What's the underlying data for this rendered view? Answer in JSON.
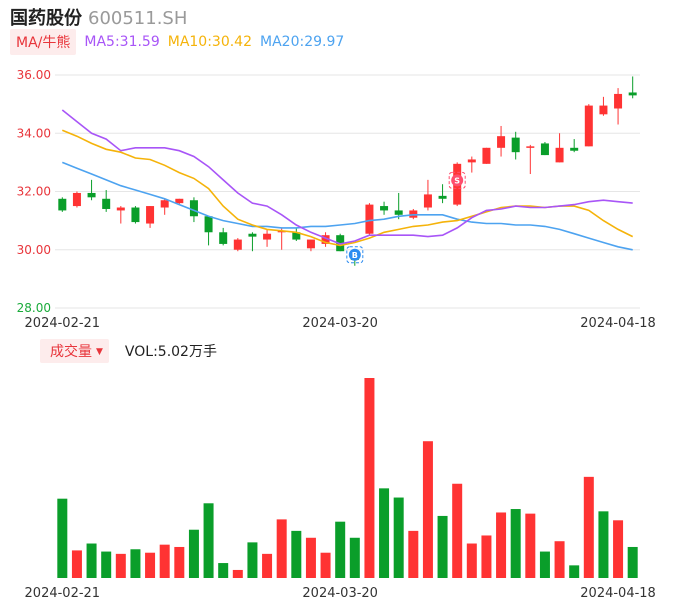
{
  "header": {
    "name": "国药股份",
    "code": "600511.SH"
  },
  "ma_legend": {
    "tag": "MA/牛熊",
    "ma5": "MA5:31.59",
    "ma10": "MA10:30.42",
    "ma20": "MA20:29.97"
  },
  "volume_legend": {
    "tag": "成交量",
    "value": "VOL:5.02万手"
  },
  "colors": {
    "up": "#ff3333",
    "down": "#0a9e2a",
    "ma5": "#a855f7",
    "ma10": "#f5b30a",
    "ma20": "#4da3f0",
    "grid": "#e6e6e6"
  },
  "chart_data": [
    {
      "type": "candlestick",
      "y_ticks": [
        "36.00",
        "34.00",
        "32.00",
        "30.00",
        "28.00"
      ],
      "ylim": [
        28,
        36
      ],
      "x_ticks": [
        {
          "label": "2024-02-21",
          "index": 0
        },
        {
          "label": "2024-03-20",
          "index": 19
        },
        {
          "label": "2024-04-18",
          "index": 38
        }
      ],
      "markers": [
        {
          "label": "B",
          "index": 20,
          "at": "low"
        },
        {
          "label": "S",
          "index": 27,
          "at": "high"
        }
      ],
      "candles": [
        {
          "o": 31.75,
          "c": 31.35,
          "h": 31.8,
          "l": 31.3
        },
        {
          "o": 31.5,
          "c": 31.95,
          "h": 32.0,
          "l": 31.45
        },
        {
          "o": 31.95,
          "c": 31.8,
          "h": 32.4,
          "l": 31.7
        },
        {
          "o": 31.75,
          "c": 31.4,
          "h": 32.05,
          "l": 31.3
        },
        {
          "o": 31.35,
          "c": 31.45,
          "h": 31.5,
          "l": 30.9
        },
        {
          "o": 31.45,
          "c": 30.95,
          "h": 31.5,
          "l": 30.9
        },
        {
          "o": 30.9,
          "c": 31.5,
          "h": 31.5,
          "l": 30.75
        },
        {
          "o": 31.45,
          "c": 31.7,
          "h": 31.75,
          "l": 31.2
        },
        {
          "o": 31.6,
          "c": 31.75,
          "h": 31.75,
          "l": 31.55
        },
        {
          "o": 31.7,
          "c": 31.15,
          "h": 31.8,
          "l": 30.95
        },
        {
          "o": 31.15,
          "c": 30.6,
          "h": 31.15,
          "l": 30.15
        },
        {
          "o": 30.6,
          "c": 30.2,
          "h": 30.75,
          "l": 30.15
        },
        {
          "o": 30.0,
          "c": 30.35,
          "h": 30.4,
          "l": 29.95
        },
        {
          "o": 30.55,
          "c": 30.45,
          "h": 30.6,
          "l": 29.95
        },
        {
          "o": 30.35,
          "c": 30.55,
          "h": 30.7,
          "l": 30.1
        },
        {
          "o": 30.6,
          "c": 30.65,
          "h": 30.75,
          "l": 30.0
        },
        {
          "o": 30.6,
          "c": 30.35,
          "h": 30.75,
          "l": 30.3
        },
        {
          "o": 30.05,
          "c": 30.35,
          "h": 30.35,
          "l": 29.95
        },
        {
          "o": 30.2,
          "c": 30.5,
          "h": 30.6,
          "l": 30.1
        },
        {
          "o": 30.5,
          "c": 29.95,
          "h": 30.55,
          "l": 29.95
        },
        {
          "o": 29.85,
          "c": 29.65,
          "h": 29.95,
          "l": 29.45
        },
        {
          "o": 30.55,
          "c": 31.55,
          "h": 31.6,
          "l": 30.5
        },
        {
          "o": 31.5,
          "c": 31.35,
          "h": 31.65,
          "l": 31.2
        },
        {
          "o": 31.35,
          "c": 31.2,
          "h": 31.95,
          "l": 31.05
        },
        {
          "o": 31.1,
          "c": 31.35,
          "h": 31.4,
          "l": 31.05
        },
        {
          "o": 31.45,
          "c": 31.9,
          "h": 32.4,
          "l": 31.35
        },
        {
          "o": 31.85,
          "c": 31.75,
          "h": 32.25,
          "l": 31.6
        },
        {
          "o": 31.55,
          "c": 32.95,
          "h": 33.0,
          "l": 31.5
        },
        {
          "o": 33.0,
          "c": 33.1,
          "h": 33.2,
          "l": 32.65
        },
        {
          "o": 32.95,
          "c": 33.5,
          "h": 33.5,
          "l": 32.95
        },
        {
          "o": 33.5,
          "c": 33.9,
          "h": 34.25,
          "l": 33.2
        },
        {
          "o": 33.85,
          "c": 33.35,
          "h": 34.05,
          "l": 33.1
        },
        {
          "o": 33.5,
          "c": 33.55,
          "h": 33.6,
          "l": 32.6
        },
        {
          "o": 33.65,
          "c": 33.25,
          "h": 33.7,
          "l": 33.25
        },
        {
          "o": 33.0,
          "c": 33.5,
          "h": 34.0,
          "l": 33.0
        },
        {
          "o": 33.5,
          "c": 33.4,
          "h": 33.8,
          "l": 33.35
        },
        {
          "o": 33.55,
          "c": 34.95,
          "h": 35.0,
          "l": 33.55
        },
        {
          "o": 34.65,
          "c": 34.95,
          "h": 35.25,
          "l": 34.6
        },
        {
          "o": 34.85,
          "c": 35.35,
          "h": 35.55,
          "l": 34.3
        },
        {
          "o": 35.4,
          "c": 35.3,
          "h": 35.95,
          "l": 35.2
        }
      ],
      "ma5": [
        34.8,
        34.4,
        34.0,
        33.8,
        33.4,
        33.5,
        33.5,
        33.5,
        33.4,
        33.2,
        32.85,
        32.4,
        31.95,
        31.6,
        31.5,
        31.2,
        30.85,
        30.6,
        30.4,
        30.2,
        30.3,
        30.5,
        30.5,
        30.5,
        30.5,
        30.45,
        30.5,
        30.75,
        31.1,
        31.35,
        31.4,
        31.5,
        31.45,
        31.45,
        31.5,
        31.55,
        31.65,
        31.7,
        31.65,
        31.6
      ],
      "ma10": [
        34.1,
        33.9,
        33.65,
        33.45,
        33.35,
        33.15,
        33.1,
        32.9,
        32.65,
        32.45,
        32.1,
        31.5,
        31.05,
        30.85,
        30.7,
        30.65,
        30.6,
        30.45,
        30.25,
        30.15,
        30.25,
        30.4,
        30.6,
        30.7,
        30.8,
        30.85,
        30.95,
        31.0,
        31.15,
        31.3,
        31.45,
        31.5,
        31.5,
        31.45,
        31.5,
        31.5,
        31.35,
        31.0,
        30.7,
        30.45
      ],
      "ma20": [
        33.0,
        32.8,
        32.6,
        32.4,
        32.2,
        32.05,
        31.9,
        31.75,
        31.55,
        31.35,
        31.15,
        31.0,
        30.9,
        30.8,
        30.8,
        30.75,
        30.75,
        30.8,
        30.8,
        30.85,
        30.9,
        31.0,
        31.05,
        31.15,
        31.2,
        31.2,
        31.2,
        31.05,
        30.95,
        30.9,
        30.9,
        30.85,
        30.85,
        30.8,
        30.7,
        30.55,
        30.4,
        30.25,
        30.1,
        30.0
      ]
    },
    {
      "type": "bar",
      "series_name": "成交量",
      "unit": "万手",
      "values": [
        6.9,
        2.4,
        3.0,
        2.3,
        2.1,
        2.5,
        2.2,
        2.9,
        2.7,
        4.2,
        6.5,
        1.3,
        0.7,
        3.1,
        2.1,
        5.1,
        4.1,
        3.5,
        2.2,
        4.9,
        3.5,
        17.4,
        7.8,
        7.0,
        4.1,
        11.9,
        5.4,
        8.2,
        3.0,
        3.7,
        5.7,
        6.0,
        5.6,
        2.3,
        3.2,
        1.1,
        8.8,
        5.8,
        5.02,
        2.7
      ],
      "directions": [
        "down",
        "up",
        "down",
        "down",
        "up",
        "down",
        "up",
        "up",
        "up",
        "down",
        "down",
        "down",
        "up",
        "down",
        "up",
        "up",
        "down",
        "up",
        "up",
        "down",
        "down",
        "up",
        "down",
        "down",
        "up",
        "up",
        "down",
        "up",
        "up",
        "up",
        "up",
        "down",
        "up",
        "down",
        "up",
        "down",
        "up",
        "down",
        "up",
        "down"
      ],
      "x_ticks": [
        {
          "label": "2024-02-21",
          "index": 0
        },
        {
          "label": "2024-03-20",
          "index": 19
        },
        {
          "label": "2024-04-18",
          "index": 38
        }
      ]
    }
  ]
}
